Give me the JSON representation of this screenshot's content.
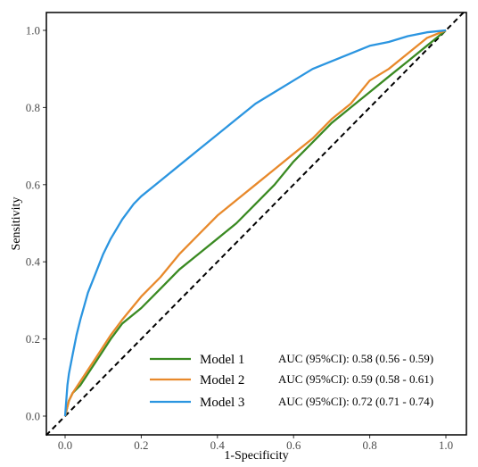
{
  "chart_data": {
    "type": "line",
    "title": "",
    "xlabel": "1-Specificity",
    "ylabel": "Sensitivity",
    "xlim": [
      0.0,
      1.0
    ],
    "ylim": [
      0.0,
      1.0
    ],
    "x_ticks": [
      "0.0",
      "0.2",
      "0.4",
      "0.6",
      "0.8",
      "1.0"
    ],
    "y_ticks": [
      "0.0",
      "0.2",
      "0.4",
      "0.6",
      "0.8",
      "1.0"
    ],
    "grid": false,
    "legend_position": "bottom-right",
    "reference_line": {
      "style": "dashed",
      "color": "#000000",
      "points": [
        [
          0,
          0
        ],
        [
          1,
          1
        ]
      ]
    },
    "series": [
      {
        "name": "Model 1",
        "color": "#3a8a22",
        "auc_label": "AUC (95%CI): 0.58 (0.56 - 0.59)",
        "points": [
          [
            0,
            0
          ],
          [
            0.005,
            0.02
          ],
          [
            0.01,
            0.04
          ],
          [
            0.02,
            0.06
          ],
          [
            0.04,
            0.08
          ],
          [
            0.06,
            0.11
          ],
          [
            0.08,
            0.14
          ],
          [
            0.1,
            0.17
          ],
          [
            0.12,
            0.2
          ],
          [
            0.15,
            0.24
          ],
          [
            0.2,
            0.28
          ],
          [
            0.25,
            0.33
          ],
          [
            0.3,
            0.38
          ],
          [
            0.35,
            0.42
          ],
          [
            0.4,
            0.46
          ],
          [
            0.45,
            0.5
          ],
          [
            0.5,
            0.55
          ],
          [
            0.55,
            0.6
          ],
          [
            0.6,
            0.66
          ],
          [
            0.65,
            0.71
          ],
          [
            0.7,
            0.76
          ],
          [
            0.75,
            0.8
          ],
          [
            0.8,
            0.84
          ],
          [
            0.85,
            0.88
          ],
          [
            0.9,
            0.92
          ],
          [
            0.95,
            0.96
          ],
          [
            1,
            1
          ]
        ]
      },
      {
        "name": "Model 2",
        "color": "#e8892b",
        "auc_label": "AUC (95%CI): 0.59 (0.58 - 0.61)",
        "points": [
          [
            0,
            0
          ],
          [
            0.005,
            0.02
          ],
          [
            0.01,
            0.04
          ],
          [
            0.02,
            0.06
          ],
          [
            0.04,
            0.09
          ],
          [
            0.06,
            0.12
          ],
          [
            0.08,
            0.15
          ],
          [
            0.1,
            0.18
          ],
          [
            0.12,
            0.21
          ],
          [
            0.15,
            0.25
          ],
          [
            0.2,
            0.31
          ],
          [
            0.25,
            0.36
          ],
          [
            0.3,
            0.42
          ],
          [
            0.35,
            0.47
          ],
          [
            0.4,
            0.52
          ],
          [
            0.45,
            0.56
          ],
          [
            0.5,
            0.6
          ],
          [
            0.55,
            0.64
          ],
          [
            0.6,
            0.68
          ],
          [
            0.65,
            0.72
          ],
          [
            0.7,
            0.77
          ],
          [
            0.75,
            0.81
          ],
          [
            0.8,
            0.87
          ],
          [
            0.85,
            0.9
          ],
          [
            0.9,
            0.94
          ],
          [
            0.95,
            0.98
          ],
          [
            1,
            1
          ]
        ]
      },
      {
        "name": "Model 3",
        "color": "#2b95e0",
        "auc_label": "AUC (95%CI): 0.72 (0.71 - 0.74)",
        "points": [
          [
            0,
            0
          ],
          [
            0.003,
            0.04
          ],
          [
            0.006,
            0.08
          ],
          [
            0.01,
            0.11
          ],
          [
            0.02,
            0.16
          ],
          [
            0.03,
            0.21
          ],
          [
            0.04,
            0.25
          ],
          [
            0.06,
            0.32
          ],
          [
            0.08,
            0.37
          ],
          [
            0.1,
            0.42
          ],
          [
            0.12,
            0.46
          ],
          [
            0.15,
            0.51
          ],
          [
            0.18,
            0.55
          ],
          [
            0.2,
            0.57
          ],
          [
            0.25,
            0.61
          ],
          [
            0.3,
            0.65
          ],
          [
            0.35,
            0.69
          ],
          [
            0.4,
            0.73
          ],
          [
            0.45,
            0.77
          ],
          [
            0.5,
            0.81
          ],
          [
            0.55,
            0.84
          ],
          [
            0.6,
            0.87
          ],
          [
            0.65,
            0.9
          ],
          [
            0.7,
            0.92
          ],
          [
            0.75,
            0.94
          ],
          [
            0.8,
            0.96
          ],
          [
            0.85,
            0.97
          ],
          [
            0.9,
            0.985
          ],
          [
            0.95,
            0.995
          ],
          [
            1,
            1
          ]
        ]
      }
    ]
  }
}
